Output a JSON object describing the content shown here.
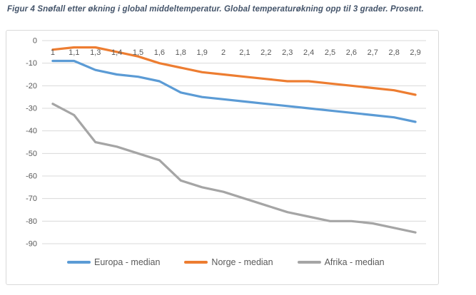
{
  "title": "Figur 4 Snøfall etter økning i global middeltemperatur. Global temperaturøkning opp til 3 grader. Prosent.",
  "chart_data": {
    "type": "line",
    "categories": [
      "1",
      "1,1",
      "1,3",
      "1,4",
      "1,5",
      "1,6",
      "1,8",
      "1,9",
      "2",
      "2,1",
      "2,2",
      "2,3",
      "2,4",
      "2,5",
      "2,6",
      "2,7",
      "2,8",
      "2,9"
    ],
    "series": [
      {
        "name": "Europa - median",
        "color": "#5B9BD5",
        "values": [
          -9,
          -9,
          -13,
          -15,
          -16,
          -18,
          -23,
          -25,
          -26,
          -27,
          -28,
          -29,
          -30,
          -31,
          -32,
          -33,
          -34,
          -36
        ]
      },
      {
        "name": "Norge - median",
        "color": "#ED7D31",
        "values": [
          -4,
          -3,
          -3,
          -5,
          -7,
          -10,
          -12,
          -14,
          -15,
          -16,
          -17,
          -18,
          -18,
          -19,
          -20,
          -21,
          -22,
          -24
        ]
      },
      {
        "name": "Afrika - median",
        "color": "#A5A5A5",
        "values": [
          -28,
          -33,
          -45,
          -47,
          -50,
          -53,
          -62,
          -65,
          -67,
          -70,
          -73,
          -76,
          -78,
          -80,
          -80,
          -81,
          -83,
          -85
        ]
      }
    ],
    "ylim": [
      -90,
      0
    ],
    "ytick_step": 10,
    "grid": true,
    "legend_position": "bottom",
    "xlabel": "",
    "ylabel": ""
  },
  "colors": {
    "title_text": "#44546A",
    "axis_text": "#595959",
    "gridline": "#D9D9D9",
    "chart_border": "#D9D9D9",
    "background": "#FFFFFF"
  }
}
